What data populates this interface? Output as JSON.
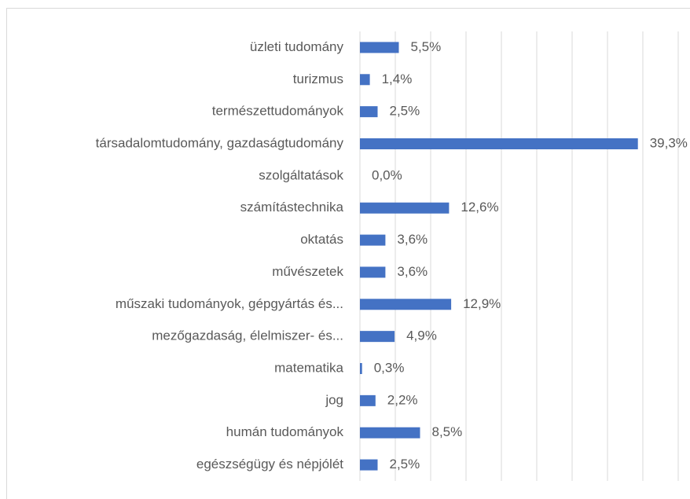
{
  "chart_data": {
    "type": "bar",
    "orientation": "horizontal",
    "categories": [
      "üzleti tudomány",
      "turizmus",
      "természettudományok",
      "társadalomtudomány, gazdaságtudomány",
      "szolgáltatások",
      "számítástechnika",
      "oktatás",
      "művészetek",
      "műszaki tudományok, gépgyártás és...",
      "mezőgazdaság, élelmiszer- és...",
      "matematika",
      "jog",
      "humán tudományok",
      "egészségügy és népjólét"
    ],
    "values": [
      5.5,
      1.4,
      2.5,
      39.3,
      0.0,
      12.6,
      3.6,
      3.6,
      12.9,
      4.9,
      0.3,
      2.2,
      8.5,
      2.5
    ],
    "value_labels": [
      "5,5%",
      "1,4%",
      "2,5%",
      "39,3%",
      "0,0%",
      "12,6%",
      "3,6%",
      "3,6%",
      "12,9%",
      "4,9%",
      "0,3%",
      "2,2%",
      "8,5%",
      "2,5%"
    ],
    "color": "#4472c4",
    "xlim": [
      0,
      45
    ],
    "xticks": [
      0,
      5,
      10,
      15,
      20,
      25,
      30,
      35,
      40,
      45
    ],
    "tick_labels": false,
    "grid": true
  }
}
